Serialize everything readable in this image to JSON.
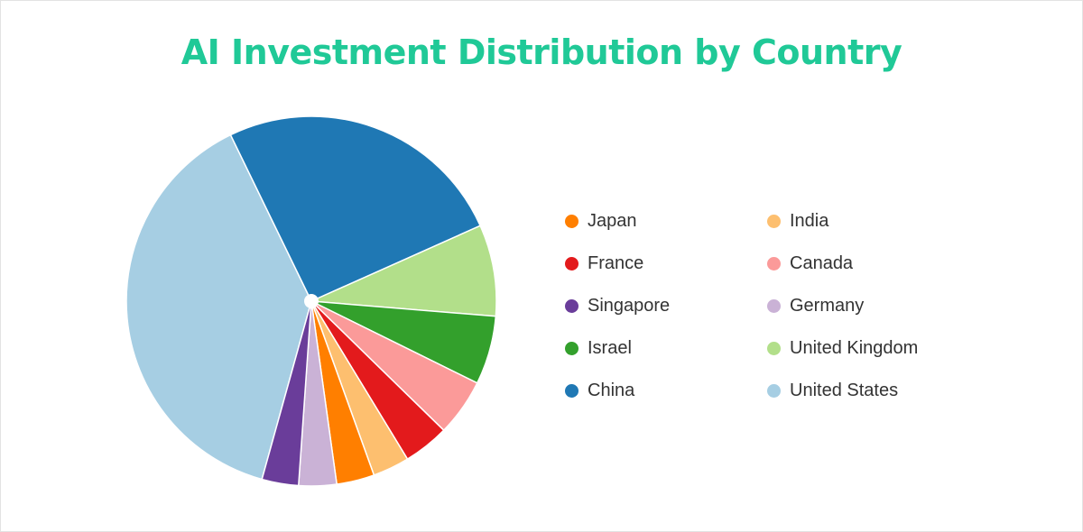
{
  "chart_data": {
    "type": "pie",
    "title": "AI Investment Distribution by Country",
    "slices": [
      {
        "label": "United States",
        "value": 38.5,
        "color": "#a6cee3"
      },
      {
        "label": "China",
        "value": 25.5,
        "color": "#1f78b4"
      },
      {
        "label": "United Kingdom",
        "value": 8.0,
        "color": "#b2df8a"
      },
      {
        "label": "Israel",
        "value": 6.0,
        "color": "#33a02c"
      },
      {
        "label": "Canada",
        "value": 5.0,
        "color": "#fb9a99"
      },
      {
        "label": "France",
        "value": 4.0,
        "color": "#e31a1c"
      },
      {
        "label": "India",
        "value": 3.2,
        "color": "#fdbf6f"
      },
      {
        "label": "Japan",
        "value": 3.3,
        "color": "#ff7f00"
      },
      {
        "label": "Germany",
        "value": 3.3,
        "color": "#cab2d6"
      },
      {
        "label": "Singapore",
        "value": 3.2,
        "color": "#6a3d9a"
      }
    ],
    "legend": {
      "placement": "right",
      "order": [
        "Japan",
        "India",
        "France",
        "Canada",
        "Singapore",
        "Germany",
        "Israel",
        "United Kingdom",
        "China",
        "United States"
      ]
    }
  }
}
